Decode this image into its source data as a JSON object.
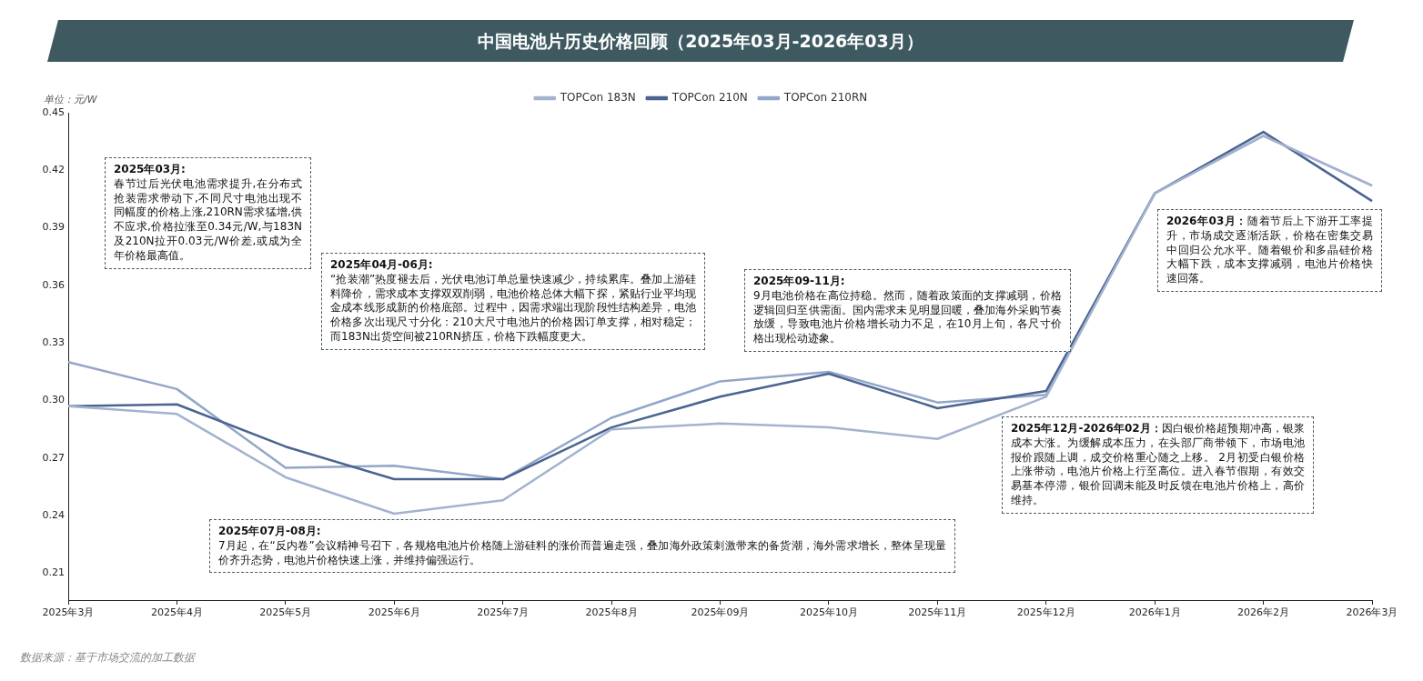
{
  "chart_data": {
    "type": "line",
    "title": "中国电池片历史价格回顾（2025年03月-2026年03月）",
    "ylabel": "单位：元/W",
    "categories": [
      "2025年3月",
      "2025年4月",
      "2025年5月",
      "2025年6月",
      "2025年7月",
      "2025年8月",
      "2025年09月",
      "2025年10月",
      "2025年11月",
      "2025年12月",
      "2026年1月",
      "2026年2月",
      "2026年3月"
    ],
    "series": [
      {
        "name": "TOPCon 183N",
        "color": "#a3b3cf",
        "values": [
          0.297,
          0.293,
          0.26,
          0.241,
          0.248,
          0.285,
          0.288,
          0.286,
          0.28,
          0.302,
          0.408,
          0.438,
          0.412
        ]
      },
      {
        "name": "TOPCon 210N",
        "color": "#4a6491",
        "values": [
          0.297,
          0.298,
          0.276,
          0.259,
          0.259,
          0.286,
          0.302,
          0.314,
          0.296,
          0.305,
          0.408,
          0.44,
          0.404
        ]
      },
      {
        "name": "TOPCon 210RN",
        "color": "#93a6c8",
        "values": [
          0.32,
          0.306,
          0.265,
          0.266,
          0.259,
          0.291,
          0.31,
          0.315,
          0.299,
          0.303,
          0.408,
          0.438,
          0.412
        ]
      }
    ],
    "ylim": [
      0.196,
      0.45
    ],
    "yticks": [
      0.21,
      0.24,
      0.27,
      {
        "value": 0.3,
        "label": "0.30"
      },
      0.33,
      0.36,
      0.39,
      0.42,
      0.45
    ],
    "grid": false,
    "legend": "top",
    "marker": "none",
    "annotations": [
      "2025年03月:\n春节过后光伏电池需求提升,在分布式抢装需求带动下,不同尺寸电池出现不同幅度的价格上涨,210RN需求猛增,供不应求,价格拉涨至0.34元/W,与183N及210N拉开0.03元/W价差,或成为全年价格最高值。",
      "2025年04月-06月:\n“抢装潮”热度褪去后，光伏电池订单总量快速减少，持续累库。叠加上游硅料降价，需求成本支撑双双削弱，电池价格总体大幅下探，紧贴行业平均现金成本线形成新的价格底部。过程中，因需求端出现阶段性结构差异，电池价格多次出现尺寸分化：210大尺寸电池片的价格因订单支撑，相对稳定；而183N出货空间被210RN挤压，价格下跌幅度更大。",
      "2025年07月-08月:\n7月起，在“反内卷”会议精神号召下，各规格电池片价格随上游硅料的涨价而普遍走强，叠加海外政策刺激带来的备货潮，海外需求增长，整体呈现量价齐升态势，电池片价格快速上涨，并维持偏强运行。",
      "2025年09-11月:\n9月电池价格在高位持稳。然而，随着政策面的支撑减弱，价格逻辑回归至供需面。国内需求未见明显回暖，叠加海外采购节奏放缓，导致电池片价格增长动力不足，在10月上旬，各尺寸价格出现松动迹象。",
      "2025年12月-2026年02月：因白银价格超预期冲高，银浆成本大涨。为缓解成本压力，在头部厂商带领下，市场电池报价跟随上调，成交价格重心随之上移。 2月初受白银价格上涨带动，电池片价格上行至高位。进入春节假期，有效交易基本停滞，银价回调未能及时反馈在电池片价格上，高价维持。",
      "2026年03月：随着节后上下游开工率提升，市场成交逐渐活跃，价格在密集交易中回归公允水平。随着银价和多晶硅价格大幅下跌，成本支撑减弱，电池片价格快速回落。",
      "数据来源：基于市场交流的加工数据"
    ]
  }
}
